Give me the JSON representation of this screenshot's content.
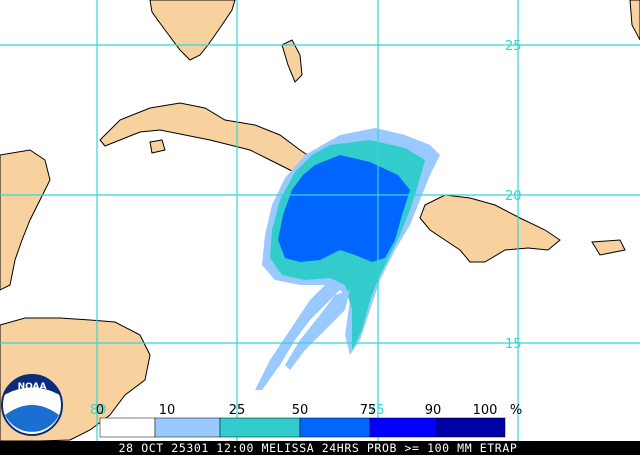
{
  "map": {
    "lat_labels": [
      25,
      20,
      15
    ],
    "lon_labels": [
      80,
      75
    ],
    "legend": {
      "ticks": [
        0,
        10,
        25,
        50,
        75,
        90,
        100
      ],
      "unit": "%",
      "colors": [
        "#ffffff",
        "#99c9ff",
        "#33cccc",
        "#0066ff",
        "#0000ff",
        "#0000a8"
      ]
    },
    "logo": "NOAA",
    "caption": "28 OCT 25301 12:00 MELISSA 24HRS PROB >= 100 MM ETRAP"
  }
}
